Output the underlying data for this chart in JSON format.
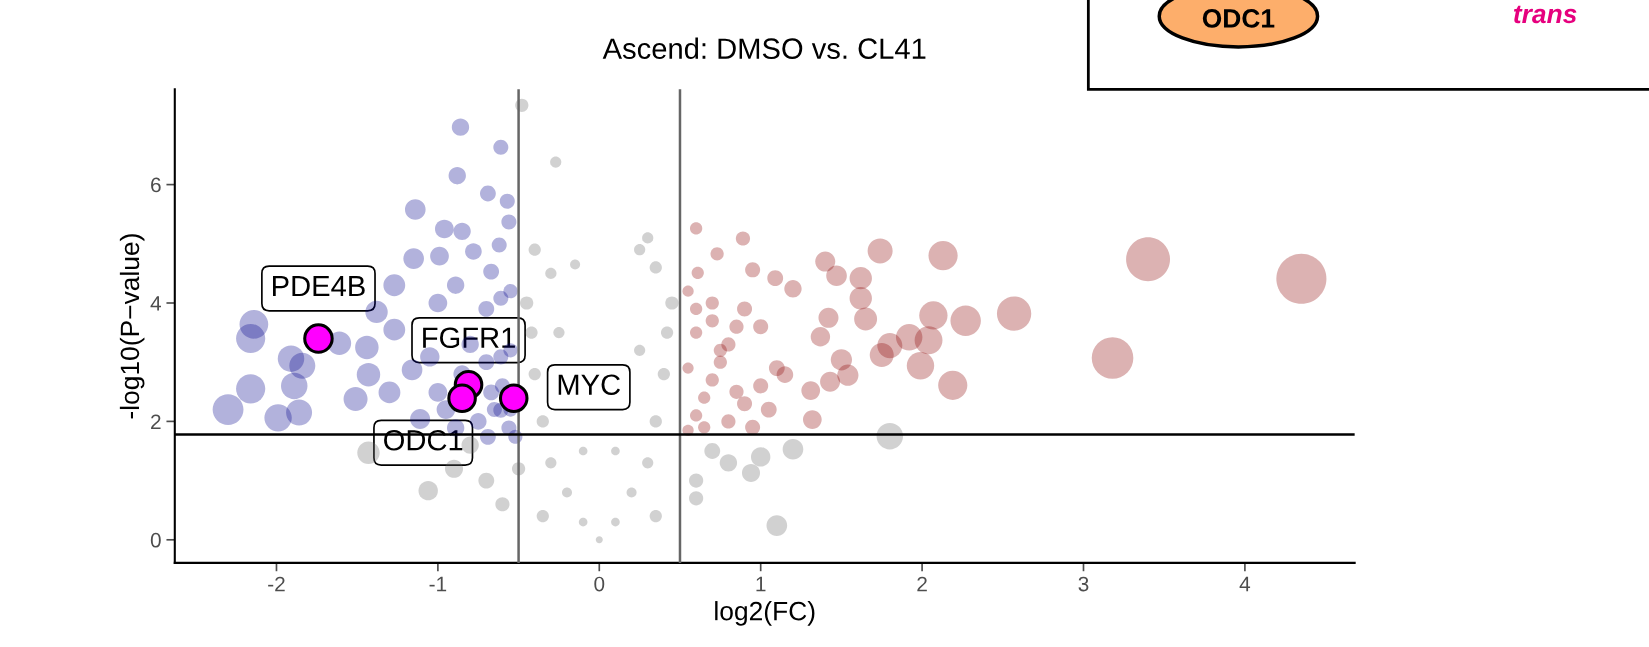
{
  "chart_data": {
    "type": "bubble",
    "title": "Ascend: DMSO vs. CL41",
    "xlabel": "log2(FC)",
    "ylabel": "-log10(P−value)",
    "xlim": [
      -2.63,
      4.68
    ],
    "ylim": [
      -0.39,
      7.61
    ],
    "xticks": [
      -2,
      -1,
      0,
      1,
      2,
      3,
      4
    ],
    "yticks": [
      0,
      2,
      4,
      6
    ],
    "grid": false,
    "legend": false,
    "series": [
      {
        "color": "#666666",
        "x": [
          0,
          -0.1,
          0.1,
          -0.2,
          0.2,
          -0.3,
          0.3,
          -0.35,
          0.35,
          -0.4,
          0.4,
          -0.42,
          0.42,
          -0.45,
          0.45,
          -0.3,
          0.35,
          -0.15,
          0.3,
          0.25,
          -0.4,
          -0.5,
          -0.7,
          -0.9,
          -0.6,
          0.6,
          0.8,
          0.7,
          -0.1,
          0.1,
          -0.25,
          0.25,
          0.6,
          1.0,
          -0.8,
          -0.48,
          -0.27,
          -1.43,
          -1.06,
          1.1,
          1.8,
          1.2,
          0.94,
          -0.35,
          0.35
        ],
        "values": [
          0,
          0.3,
          0.3,
          0.8,
          0.8,
          1.3,
          1.3,
          2.0,
          2.0,
          2.8,
          2.8,
          3.5,
          3.5,
          4.0,
          4.0,
          4.5,
          4.6,
          4.65,
          5.1,
          4.9,
          4.9,
          1.2,
          1.0,
          1.2,
          0.6,
          0.7,
          1.3,
          1.5,
          1.5,
          1.5,
          3.5,
          3.2,
          1.0,
          1.4,
          1.6,
          7.34,
          6.38,
          1.47,
          0.83,
          0.24,
          1.75,
          1.53,
          1.13,
          0.4,
          0.4
        ],
        "sizes": [
          0.02,
          0.03,
          0.03,
          0.04,
          0.04,
          0.05,
          0.05,
          0.06,
          0.06,
          0.06,
          0.06,
          0.06,
          0.06,
          0.07,
          0.07,
          0.05,
          0.06,
          0.04,
          0.05,
          0.05,
          0.06,
          0.07,
          0.1,
          0.13,
          0.08,
          0.08,
          0.12,
          0.1,
          0.03,
          0.03,
          0.05,
          0.05,
          0.08,
          0.15,
          0.12,
          0.07,
          0.05,
          0.2,
          0.15,
          0.17,
          0.28,
          0.17,
          0.13,
          0.06,
          0.06
        ]
      },
      {
        "color": "#00008b",
        "x": [
          -2.3,
          -2.16,
          -2.16,
          -2.14,
          -1.99,
          -1.89,
          -1.86,
          -1.84,
          -1.91,
          -1.61,
          -1.14,
          -0.86,
          -0.61,
          -0.88,
          -0.69,
          -0.57,
          -0.56,
          -0.96,
          -0.85,
          -0.62,
          -1.15,
          -0.99,
          -0.78,
          -1.27,
          -1.38,
          -1.44,
          -1.43,
          -1.51,
          -1.3,
          -1.16,
          -1.0,
          -0.89,
          -0.67,
          -0.61,
          -1.05,
          -0.61,
          -1.0,
          -0.67,
          -0.56,
          -0.89,
          -0.69,
          -0.52,
          -0.61,
          -1.11,
          -1.27,
          -0.55,
          -0.6,
          -0.7,
          -0.8,
          -0.55,
          -0.65,
          -0.75,
          -0.85,
          -0.95,
          -0.55,
          -0.7
        ],
        "values": [
          2.2,
          2.55,
          3.4,
          3.64,
          2.06,
          2.6,
          2.15,
          2.94,
          3.06,
          3.32,
          5.58,
          6.97,
          6.63,
          6.15,
          5.85,
          5.72,
          5.37,
          5.25,
          5.21,
          4.98,
          4.75,
          4.79,
          4.87,
          4.3,
          3.85,
          3.25,
          2.79,
          2.38,
          2.49,
          2.87,
          4.0,
          4.3,
          4.53,
          4.08,
          3.09,
          3.09,
          2.49,
          2.49,
          1.89,
          1.89,
          1.74,
          1.74,
          2.19,
          2.04,
          3.55,
          2.2,
          2.6,
          3.0,
          3.3,
          3.2,
          2.2,
          2.0,
          2.8,
          2.2,
          4.2,
          3.9
        ],
        "sizes": [
          0.38,
          0.34,
          0.34,
          0.33,
          0.3,
          0.28,
          0.27,
          0.27,
          0.28,
          0.22,
          0.17,
          0.12,
          0.09,
          0.12,
          0.1,
          0.09,
          0.09,
          0.14,
          0.12,
          0.09,
          0.17,
          0.14,
          0.11,
          0.19,
          0.2,
          0.22,
          0.22,
          0.23,
          0.19,
          0.17,
          0.14,
          0.12,
          0.1,
          0.09,
          0.15,
          0.09,
          0.14,
          0.1,
          0.09,
          0.12,
          0.1,
          0.08,
          0.09,
          0.16,
          0.19,
          0.08,
          0.09,
          0.1,
          0.12,
          0.08,
          0.09,
          0.11,
          0.12,
          0.14,
          0.08,
          0.1
        ]
      },
      {
        "color": "#8b0000",
        "x": [
          4.35,
          3.4,
          3.18,
          2.57,
          2.13,
          1.74,
          2.27,
          2.07,
          2.04,
          1.99,
          2.19,
          1.92,
          1.62,
          1.62,
          1.65,
          1.42,
          1.37,
          1.47,
          1.4,
          1.2,
          1.09,
          0.95,
          0.89,
          0.6,
          0.73,
          0.61,
          1.8,
          1.75,
          1.5,
          1.54,
          1.31,
          1.32,
          1.43,
          1.15,
          1.0,
          0.55,
          0.6,
          0.65,
          0.7,
          0.75,
          0.8,
          0.85,
          0.9,
          0.55,
          0.6,
          0.7,
          0.8,
          0.9,
          1.0,
          1.1,
          0.55,
          0.65,
          0.75,
          0.85,
          0.95,
          1.05,
          0.6,
          0.7
        ],
        "values": [
          4.41,
          4.74,
          3.07,
          3.82,
          4.8,
          4.88,
          3.7,
          3.79,
          3.37,
          2.94,
          2.61,
          3.42,
          4.42,
          4.08,
          3.73,
          3.75,
          3.43,
          4.46,
          4.7,
          4.24,
          4.42,
          4.56,
          5.09,
          5.26,
          4.83,
          4.51,
          3.28,
          3.12,
          3.04,
          2.78,
          2.52,
          2.03,
          2.67,
          2.79,
          3.6,
          1.85,
          2.1,
          2.4,
          2.7,
          3.0,
          3.3,
          3.6,
          3.9,
          2.9,
          3.5,
          4.0,
          2.0,
          2.3,
          2.6,
          2.9,
          4.2,
          1.9,
          3.2,
          2.5,
          1.9,
          2.2,
          3.9,
          3.7
        ],
        "sizes": [
          1,
          0.77,
          0.69,
          0.47,
          0.34,
          0.25,
          0.37,
          0.32,
          0.31,
          0.3,
          0.34,
          0.28,
          0.2,
          0.2,
          0.21,
          0.16,
          0.15,
          0.17,
          0.16,
          0.12,
          0.1,
          0.09,
          0.08,
          0.06,
          0.07,
          0.06,
          0.25,
          0.23,
          0.18,
          0.18,
          0.14,
          0.14,
          0.16,
          0.11,
          0.09,
          0.05,
          0.06,
          0.06,
          0.07,
          0.07,
          0.08,
          0.08,
          0.09,
          0.05,
          0.06,
          0.07,
          0.08,
          0.09,
          0.09,
          0.1,
          0.05,
          0.06,
          0.07,
          0.08,
          0.09,
          0.1,
          0.06,
          0.07
        ]
      },
      {
        "color": "#ff00ff",
        "x": [
          -1.74,
          -0.81,
          -0.85,
          -0.53
        ],
        "values": [
          3.4,
          2.62,
          2.39,
          2.39
        ],
        "sizes": [
          0.3,
          0.28,
          0.28,
          0.28
        ]
      }
    ],
    "ref_lines": [
      {
        "axis": "x",
        "value": -0.5,
        "color": "#666666"
      },
      {
        "axis": "x",
        "value": 0.5,
        "color": "#666666"
      },
      {
        "axis": "y",
        "value": 1.78,
        "color": "#000000"
      }
    ],
    "annotations": [
      {
        "text": "PDE4B",
        "x": -1.74,
        "y": 3.4
      },
      {
        "text": "FGFR1",
        "x": -0.81,
        "y": 2.62
      },
      {
        "text": "ODC1",
        "x": -0.85,
        "y": 2.39
      },
      {
        "text": "MYC",
        "x": -0.53,
        "y": 2.39
      },
      "ODC1",
      "trans"
    ]
  }
}
